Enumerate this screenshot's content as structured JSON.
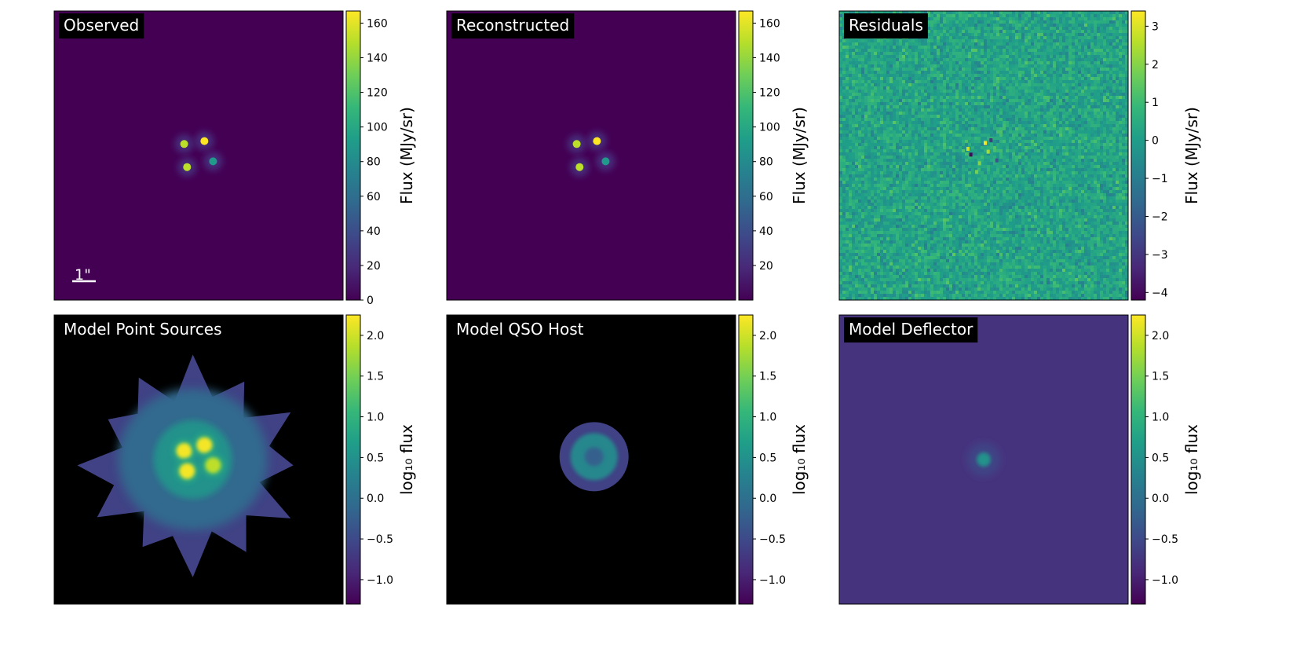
{
  "figure": {
    "background": "#ffffff"
  },
  "colors": {
    "viridis": [
      "#440154",
      "#482878",
      "#3e4989",
      "#31688e",
      "#26828e",
      "#1f9e89",
      "#35b779",
      "#6ece58",
      "#b5de2b",
      "#fde725"
    ],
    "label_bg": "#000000",
    "label_fg": "#ffffff",
    "axis_black": "#000000"
  },
  "chart_data": [
    {
      "type": "heatmap",
      "title": "Observed",
      "colorbar": {
        "label": "Flux (MJy/sr)",
        "range": [
          0,
          167
        ],
        "ticks": [
          0,
          20,
          40,
          60,
          80,
          100,
          120,
          140,
          160
        ],
        "tick_labels": [
          "0",
          "20",
          "40",
          "60",
          "80",
          "100",
          "120",
          "140",
          "160"
        ]
      },
      "scale_bar": "1\"",
      "label_box": true,
      "background": "#440154",
      "sources": [
        {
          "x": 0.45,
          "y": 0.46,
          "sigma": 0.02,
          "value": 150
        },
        {
          "x": 0.52,
          "y": 0.45,
          "sigma": 0.02,
          "value": 167
        },
        {
          "x": 0.46,
          "y": 0.54,
          "sigma": 0.02,
          "value": 150
        },
        {
          "x": 0.55,
          "y": 0.52,
          "sigma": 0.02,
          "value": 90
        }
      ]
    },
    {
      "type": "heatmap",
      "title": "Reconstructed",
      "colorbar": {
        "label": "Flux (MJy/sr)",
        "range": [
          0,
          167
        ],
        "ticks": [
          20,
          40,
          60,
          80,
          100,
          120,
          140,
          160
        ],
        "tick_labels": [
          "20",
          "40",
          "60",
          "80",
          "100",
          "120",
          "140",
          "160"
        ]
      },
      "label_box": true,
      "background": "#440154",
      "sources": [
        {
          "x": 0.45,
          "y": 0.46,
          "sigma": 0.02,
          "value": 150
        },
        {
          "x": 0.52,
          "y": 0.45,
          "sigma": 0.02,
          "value": 167
        },
        {
          "x": 0.46,
          "y": 0.54,
          "sigma": 0.02,
          "value": 150
        },
        {
          "x": 0.55,
          "y": 0.52,
          "sigma": 0.02,
          "value": 90
        }
      ]
    },
    {
      "type": "heatmap",
      "title": "Residuals",
      "colorbar": {
        "label": "Flux (MJy/sr)",
        "range": [
          -4.2,
          3.4
        ],
        "ticks": [
          -4,
          -3,
          -2,
          -1,
          0,
          1,
          2,
          3
        ],
        "tick_labels": [
          "−4",
          "−3",
          "−2",
          "−1",
          "0",
          "1",
          "2",
          "3"
        ]
      },
      "label_box": true,
      "background": "#20928c",
      "noise": true
    },
    {
      "type": "heatmap",
      "title": "Model Point Sources",
      "colorbar": {
        "label": "log₁₀ flux",
        "range": [
          -1.3,
          2.25
        ],
        "ticks": [
          -1.0,
          -0.5,
          0.0,
          0.5,
          1.0,
          1.5,
          2.0
        ],
        "tick_labels": [
          "−1.0",
          "−0.5",
          "0.0",
          "0.5",
          "1.0",
          "1.5",
          "2.0"
        ]
      },
      "label_box": false,
      "background": "#000000",
      "halo": {
        "x": 0.48,
        "y": 0.52,
        "value": -0.6
      },
      "inner": {
        "x": 0.48,
        "y": 0.5,
        "value": 0.5
      },
      "sources": [
        {
          "x": 0.45,
          "y": 0.47,
          "value": 2.2
        },
        {
          "x": 0.52,
          "y": 0.45,
          "value": 2.2
        },
        {
          "x": 0.46,
          "y": 0.54,
          "value": 2.2
        },
        {
          "x": 0.55,
          "y": 0.52,
          "value": 1.9
        }
      ]
    },
    {
      "type": "heatmap",
      "title": "Model QSO Host",
      "colorbar": {
        "label": "log₁₀ flux",
        "range": [
          -1.3,
          2.25
        ],
        "ticks": [
          -1.0,
          -0.5,
          0.0,
          0.5,
          1.0,
          1.5,
          2.0
        ],
        "tick_labels": [
          "−1.0",
          "−0.5",
          "0.0",
          "0.5",
          "1.0",
          "1.5",
          "2.0"
        ]
      },
      "label_box": false,
      "background": "#000000",
      "ring": {
        "x": 0.51,
        "y": 0.49,
        "outer_value": -0.6,
        "ring_value": 0.35,
        "center_value": -0.2
      }
    },
    {
      "type": "heatmap",
      "title": "Model Deflector",
      "colorbar": {
        "label": "log₁₀ flux",
        "range": [
          -1.3,
          2.25
        ],
        "ticks": [
          -1.0,
          -0.5,
          0.0,
          0.5,
          1.0,
          1.5,
          2.0
        ],
        "tick_labels": [
          "−1.0",
          "−0.5",
          "0.0",
          "0.5",
          "1.0",
          "1.5",
          "2.0"
        ]
      },
      "label_box": true,
      "background": "#46337e",
      "blob": {
        "x": 0.5,
        "y": 0.5,
        "value": 0.5
      }
    }
  ]
}
